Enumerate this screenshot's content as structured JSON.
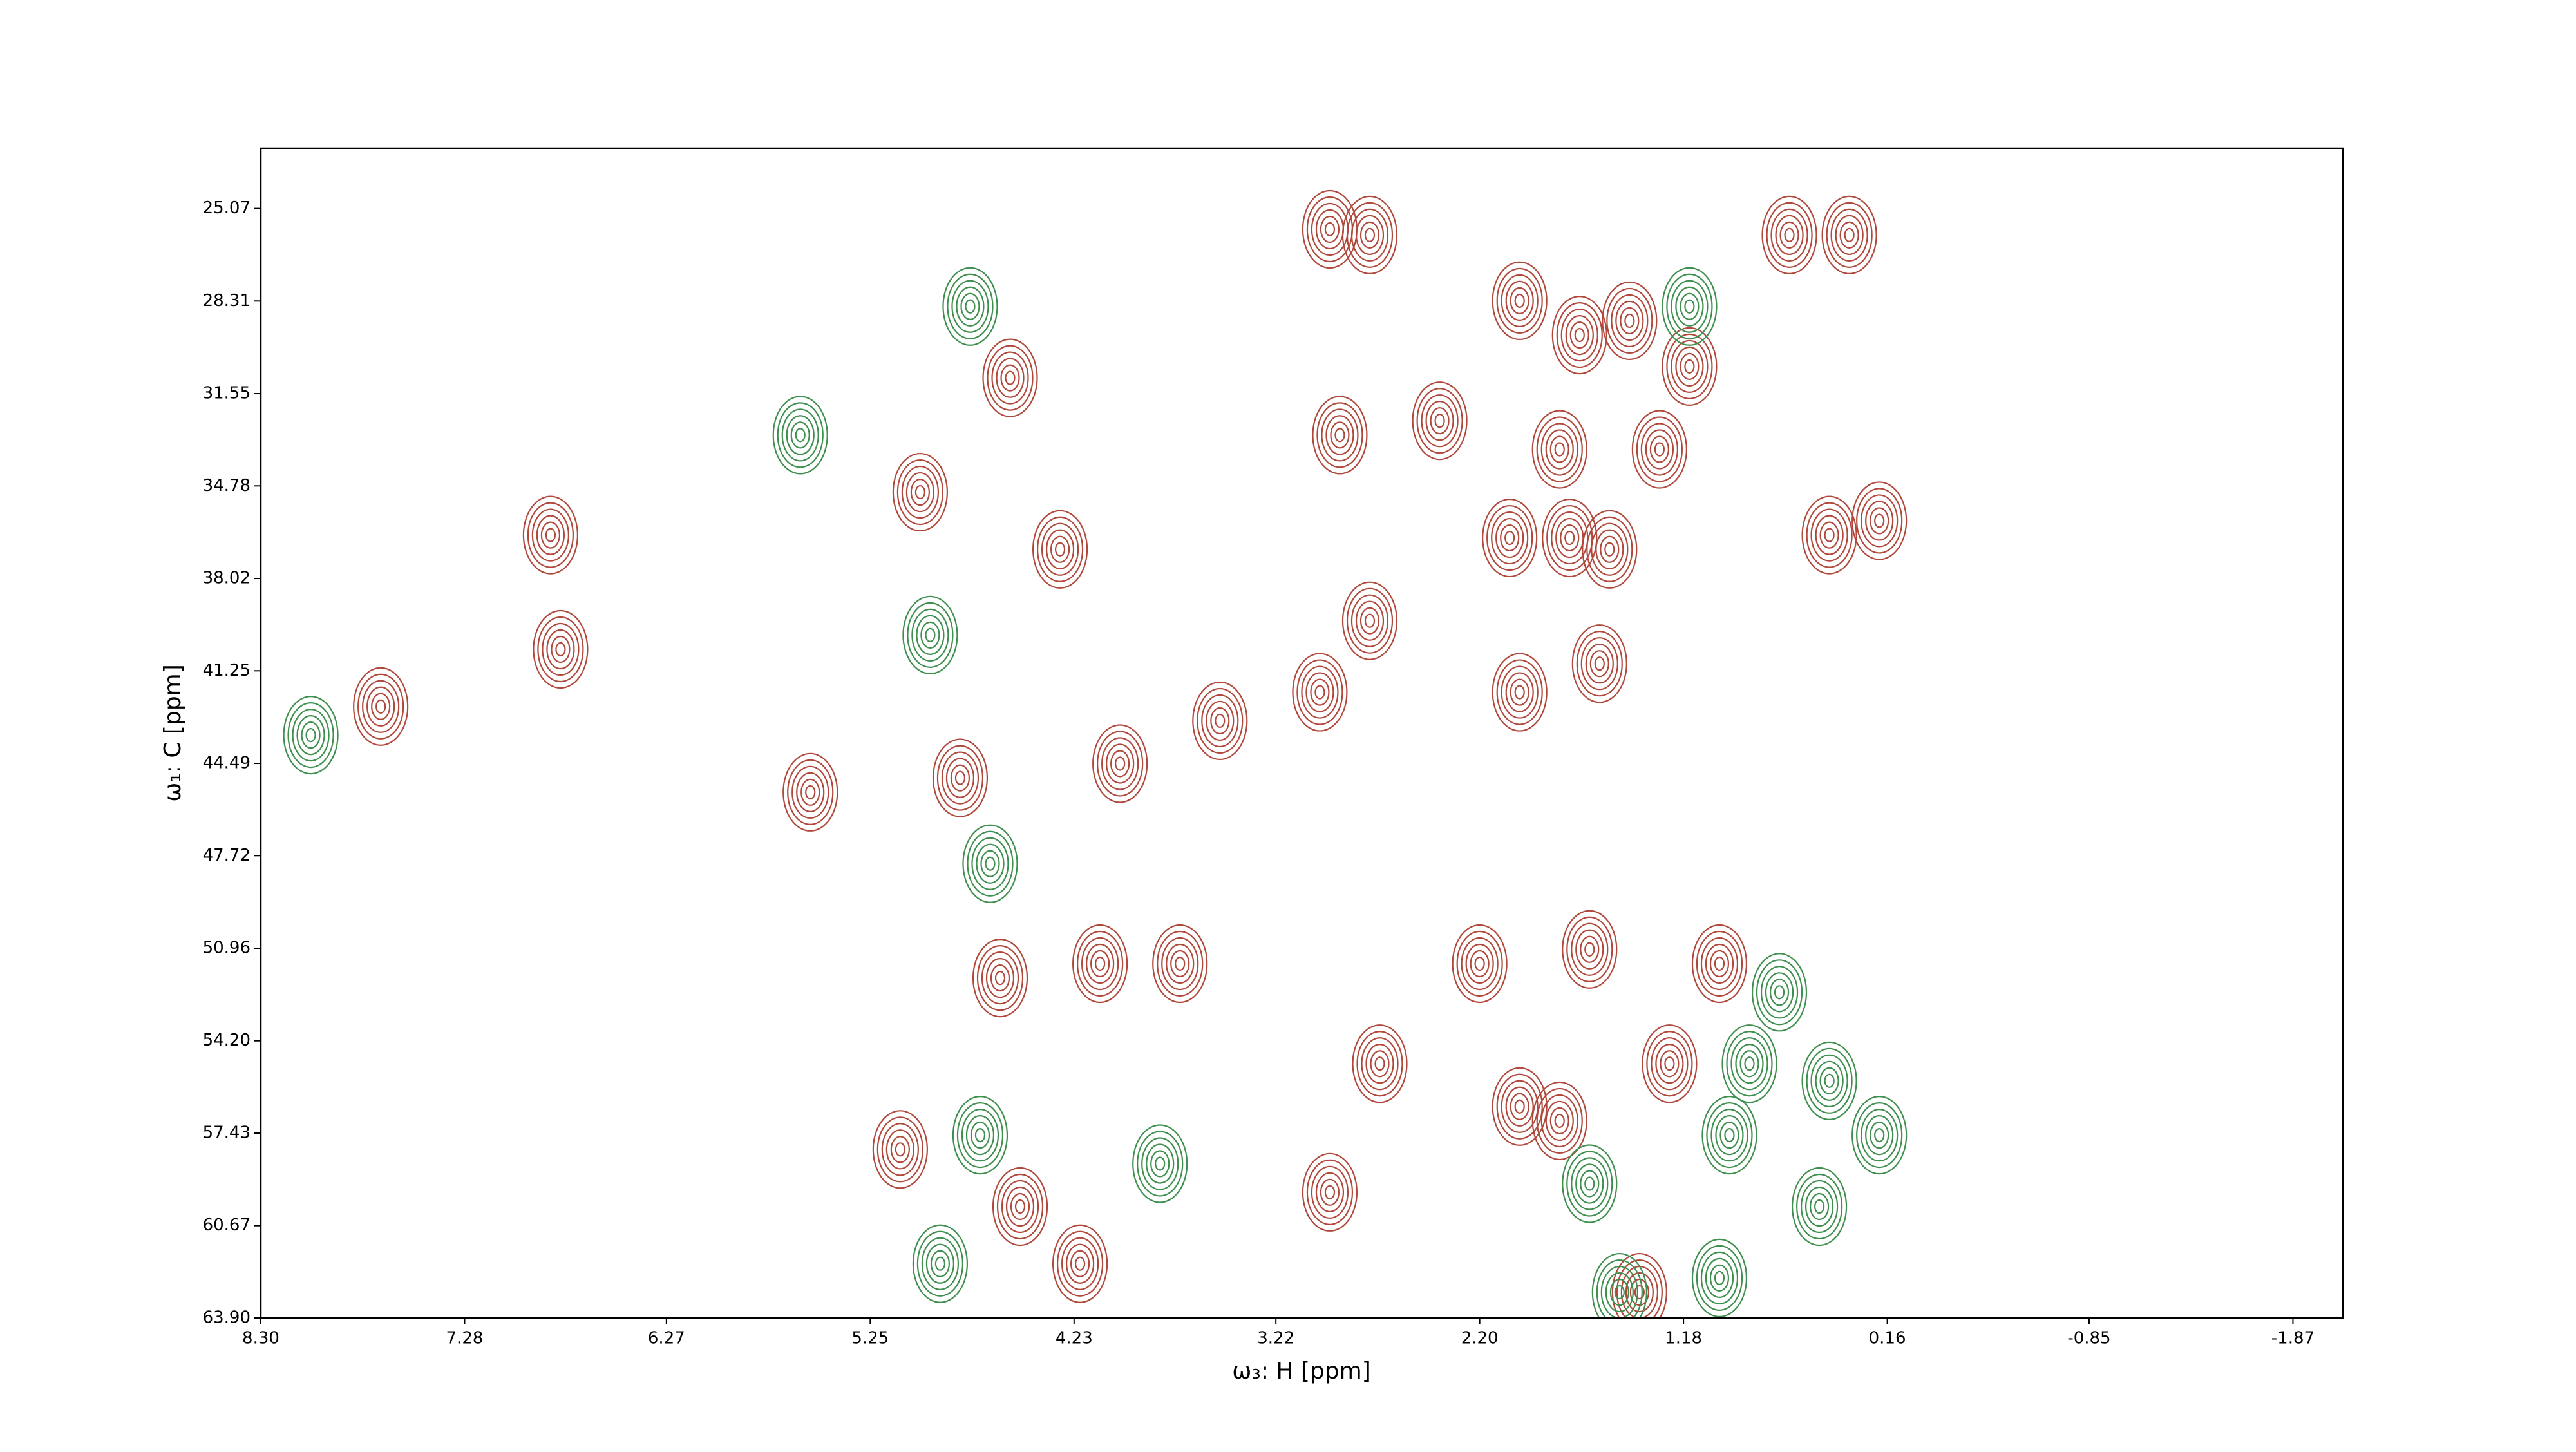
{
  "chart_data": {
    "type": "contour",
    "xlabel": "ω₃: H [ppm]",
    "ylabel": "ω₁: C [ppm]",
    "xlim": [
      8.3,
      -2.12
    ],
    "ylim": [
      63.9,
      22.96
    ],
    "xticks": [
      {
        "value": 8.3,
        "label": "8.30"
      },
      7.28,
      6.27,
      5.25,
      4.23,
      3.22,
      {
        "value": 2.2,
        "label": "2.20"
      },
      1.18,
      0.16,
      -0.85,
      -1.87
    ],
    "yticks": [
      25.07,
      28.31,
      31.55,
      34.78,
      38.02,
      41.25,
      44.49,
      47.72,
      50.96,
      {
        "value": 54.2,
        "label": "54.20"
      },
      57.43,
      60.67,
      {
        "value": 63.9,
        "label": "63.90"
      }
    ],
    "series": [
      {
        "color": "#b0493c",
        "x": [
          2.95,
          2.75,
          2.0,
          1.7,
          1.45,
          1.15,
          2.9,
          2.4,
          1.8,
          1.3,
          2.05,
          1.75,
          1.55,
          2.75,
          1.6,
          2.0,
          3.0,
          3.5,
          4.0,
          4.1,
          3.7,
          2.2,
          1.65,
          1.0,
          2.7,
          2.0,
          1.25,
          2.95,
          1.8,
          6.8,
          6.85,
          5.55,
          7.7,
          4.55,
          4.3,
          0.35,
          0.65,
          0.2,
          0.45,
          4.5,
          4.2,
          1.4,
          5.0,
          4.8,
          4.6,
          5.1
        ],
        "y": [
          25.8,
          26.0,
          28.3,
          29.5,
          29.0,
          30.6,
          33.0,
          32.5,
          33.5,
          33.5,
          36.6,
          36.6,
          37.0,
          39.5,
          41.0,
          42.0,
          42.0,
          43.0,
          44.5,
          51.5,
          51.5,
          51.5,
          51.0,
          51.5,
          55.0,
          56.5,
          55.0,
          59.5,
          57.0,
          40.5,
          36.5,
          45.5,
          42.5,
          31.0,
          37.0,
          26.0,
          26.0,
          36.0,
          36.5,
          60.0,
          62.0,
          63.0,
          35.0,
          45.0,
          52.0,
          58.0
        ]
      },
      {
        "color": "#3f8f4f",
        "x": [
          0.7,
          0.45,
          0.85,
          0.95,
          1.0,
          1.5,
          0.5,
          0.2,
          1.65,
          4.75,
          4.9,
          5.6,
          8.05,
          4.7,
          3.8,
          1.15,
          4.95,
          4.65
        ],
        "y": [
          52.5,
          55.6,
          55.0,
          57.5,
          62.5,
          63.0,
          60.0,
          57.5,
          59.2,
          28.5,
          62.0,
          33.0,
          43.5,
          57.5,
          58.5,
          28.5,
          40.0,
          48.0
        ]
      }
    ]
  }
}
